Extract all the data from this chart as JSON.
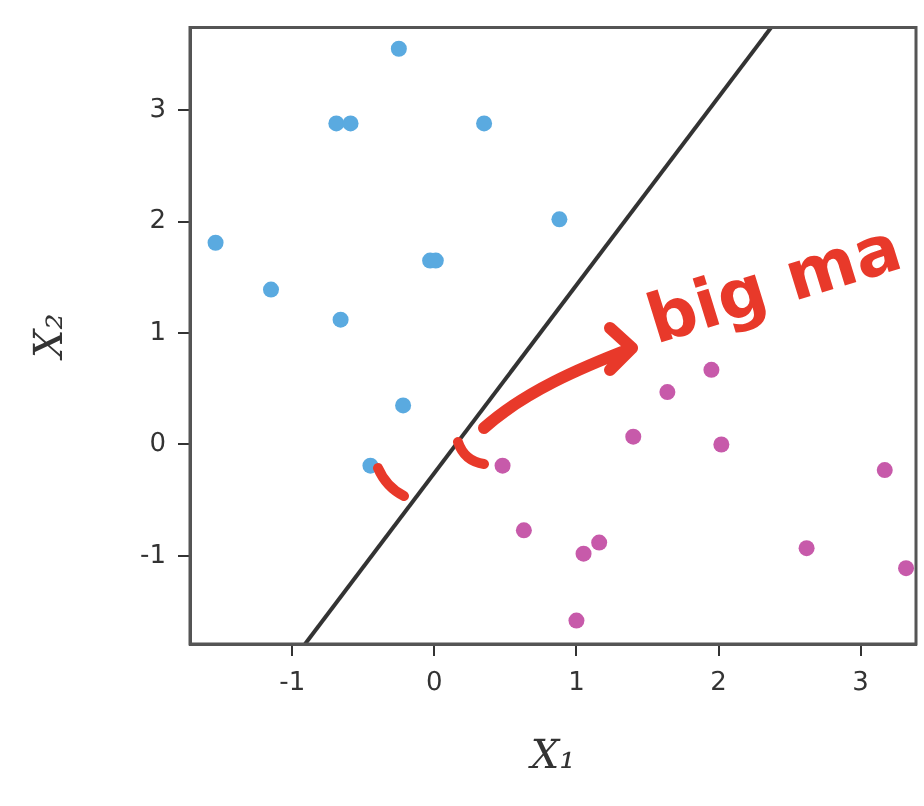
{
  "chart_data": {
    "type": "scatter",
    "xlabel": "X₁",
    "ylabel": "X₂",
    "xlim": [
      -1.72,
      3.39
    ],
    "ylim": [
      -1.79,
      3.74
    ],
    "xticks": [
      -1,
      0,
      1,
      2,
      3
    ],
    "yticks": [
      -1,
      0,
      1,
      2,
      3
    ],
    "grid": false,
    "legend": false,
    "marker": "circle",
    "annotations": [
      "big ma"
    ],
    "series": [
      {
        "type": "scatter",
        "color": "#5aaae0",
        "x": [
          -0.25,
          -0.69,
          -0.59,
          0.35,
          0.88,
          -1.54,
          -0.03,
          0.01,
          -1.15,
          -0.66,
          -0.22,
          -0.45
        ],
        "values": [
          3.55,
          2.88,
          2.88,
          2.88,
          2.02,
          1.81,
          1.65,
          1.65,
          1.39,
          1.12,
          0.35,
          -0.19
        ]
      },
      {
        "type": "scatter",
        "color": "#c75aaa",
        "x": [
          0.48,
          0.63,
          1.05,
          1.16,
          1.0,
          1.4,
          1.64,
          1.95,
          2.02,
          2.62,
          3.17,
          3.32
        ],
        "values": [
          -0.19,
          -0.77,
          -0.98,
          -0.88,
          -1.58,
          0.07,
          0.47,
          0.67,
          0.0,
          -0.93,
          -0.23,
          -1.11
        ]
      },
      {
        "type": "line",
        "color": "#333333",
        "x": [
          -0.91,
          2.37
        ],
        "values": [
          -1.79,
          3.74
        ],
        "line_style": "solid",
        "marker": "none"
      }
    ]
  }
}
